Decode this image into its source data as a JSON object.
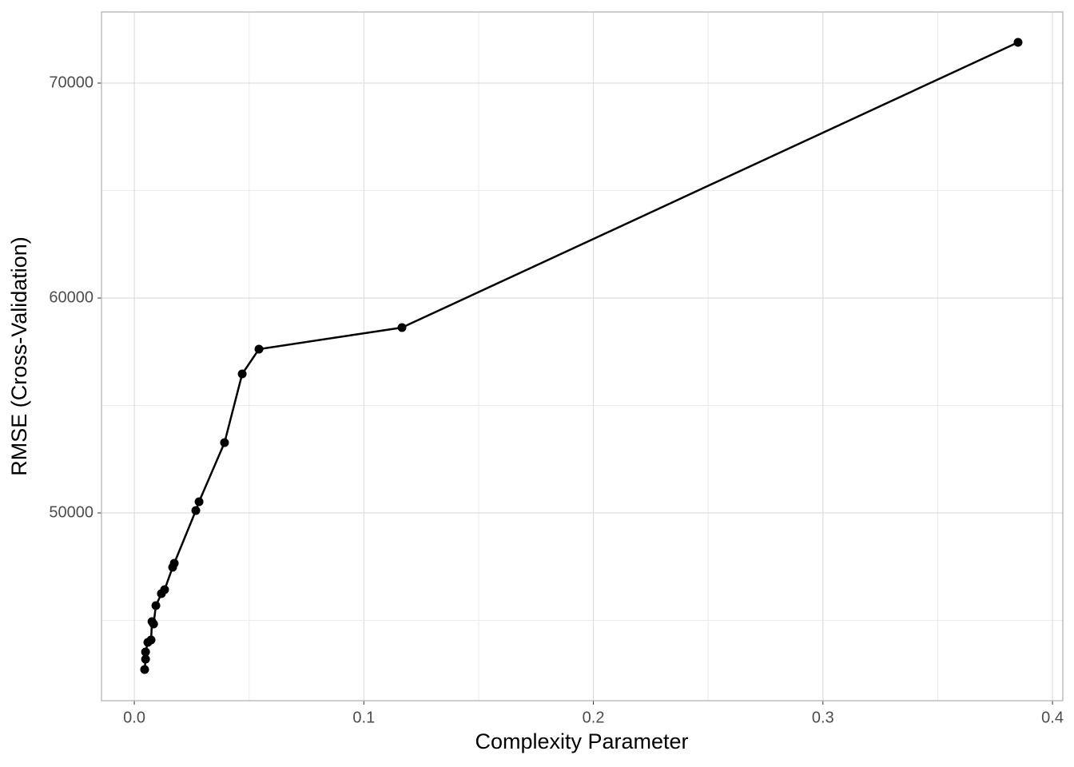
{
  "chart_data": {
    "type": "line",
    "x_label": "Complexity Parameter",
    "y_label": "RMSE (Cross-Validation)",
    "x": [
      0.0045,
      0.0049,
      0.0049,
      0.0059,
      0.0073,
      0.0077,
      0.0084,
      0.0094,
      0.0118,
      0.0132,
      0.0167,
      0.0174,
      0.0268,
      0.0282,
      0.0393,
      0.047,
      0.0543,
      0.1166,
      0.385
    ],
    "series": [
      {
        "color": "#000000",
        "values": [
          42714,
          43197,
          43532,
          43978,
          44089,
          44944,
          44833,
          45688,
          46245,
          46431,
          47472,
          47658,
          50112,
          50520,
          53271,
          56468,
          57621,
          58625,
          71896
        ]
      }
    ],
    "xlim": [
      -0.0143,
      0.4045
    ],
    "ylim": [
      41264,
      73309
    ],
    "xticks": [
      {
        "value": 0,
        "label": "0.0"
      },
      0.1,
      0.2,
      0.3,
      0.4
    ],
    "yticks": [
      50000,
      60000,
      70000
    ],
    "x_minor_grid": [
      0.05,
      0.15,
      0.25,
      0.35
    ],
    "y_minor_grid": [
      45000,
      55000,
      65000
    ],
    "grid": true
  }
}
